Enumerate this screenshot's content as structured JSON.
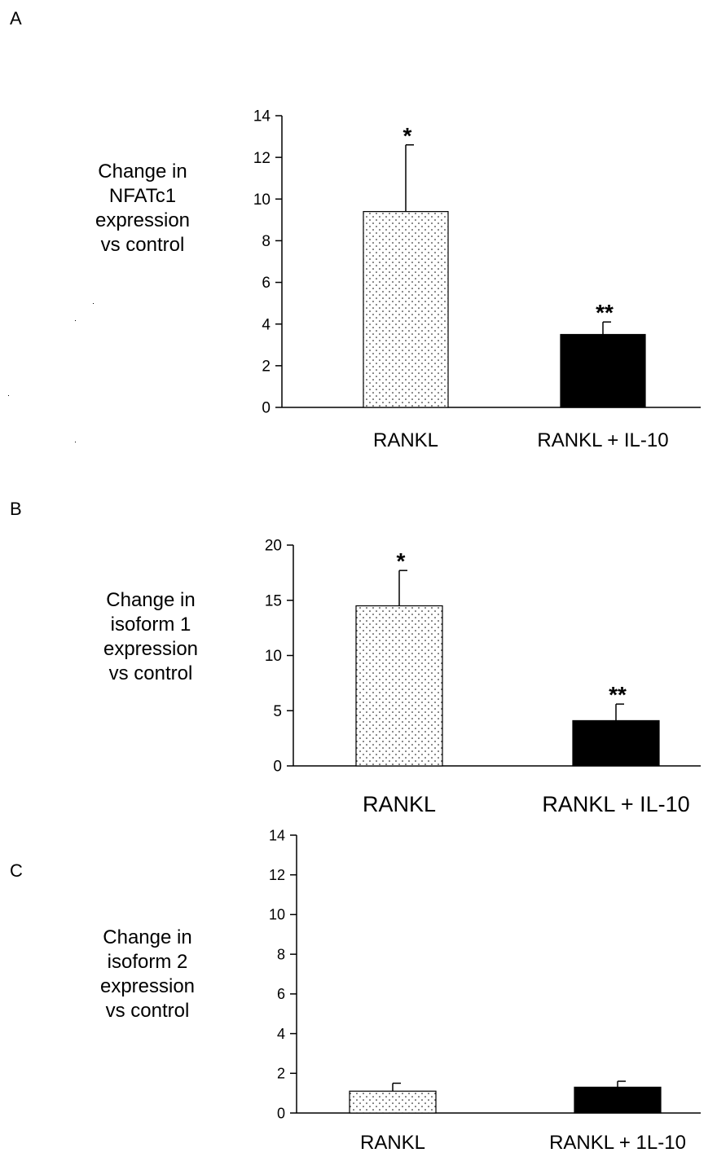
{
  "chart_data": [
    {
      "type": "bar",
      "panel": "A",
      "categories": [
        "RANKL",
        "RANKL + IL-10"
      ],
      "values": [
        9.4,
        3.5
      ],
      "errors": [
        3.2,
        0.6
      ],
      "annotations": [
        "*",
        "**"
      ],
      "ylabel_lines": [
        "Change in",
        "NFATc1",
        "expression",
        "vs control"
      ],
      "ylim": [
        0,
        14
      ],
      "yticks": [
        0,
        2,
        4,
        6,
        8,
        10,
        12,
        14
      ],
      "bar_styles": [
        "dotted",
        "solid"
      ],
      "bar_colors": [
        "#ffffff",
        "#000000"
      ],
      "grid": false
    },
    {
      "type": "bar",
      "panel": "B",
      "categories": [
        "RANKL",
        "RANKL + IL-10"
      ],
      "values": [
        14.5,
        4.1
      ],
      "errors": [
        3.2,
        1.5
      ],
      "annotations": [
        "*",
        "**"
      ],
      "ylabel_lines": [
        "Change in",
        "isoform 1",
        "expression",
        "vs control"
      ],
      "ylim": [
        0,
        20
      ],
      "yticks": [
        0,
        5,
        10,
        15,
        20
      ],
      "bar_styles": [
        "dotted",
        "solid"
      ],
      "bar_colors": [
        "#ffffff",
        "#000000"
      ],
      "grid": false
    },
    {
      "type": "bar",
      "panel": "C",
      "categories": [
        "RANKL",
        "RANKL + 1L-10"
      ],
      "values": [
        1.1,
        1.3
      ],
      "errors": [
        0.4,
        0.3
      ],
      "annotations": [
        "",
        ""
      ],
      "ylabel_lines": [
        "Change in",
        "isoform 2",
        "expression",
        "vs control"
      ],
      "ylim": [
        0,
        14
      ],
      "yticks": [
        0,
        2,
        4,
        6,
        8,
        10,
        12,
        14
      ],
      "bar_styles": [
        "dotted",
        "solid"
      ],
      "bar_colors": [
        "#ffffff",
        "#000000"
      ],
      "grid": false
    }
  ]
}
